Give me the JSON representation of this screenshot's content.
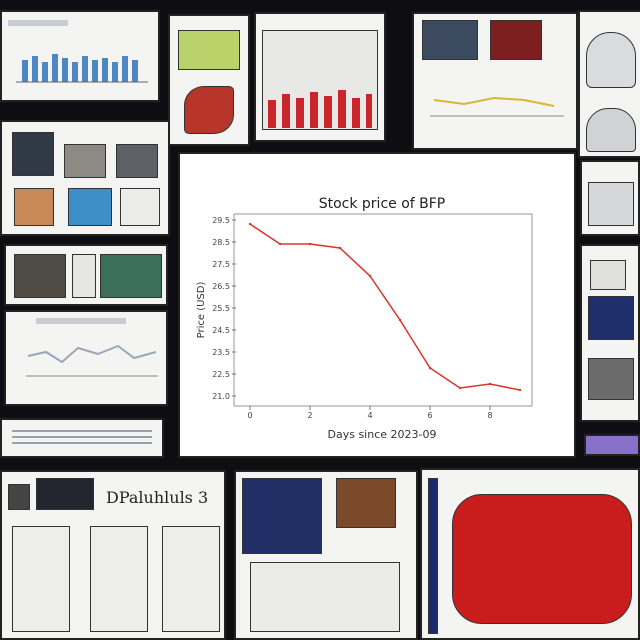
{
  "collage": {
    "middle_left_heading": "",
    "bottom_left_heading": "DPaluhluls 3"
  },
  "chart_data": {
    "type": "line",
    "title": "Stock price of BFP",
    "xlabel": "Days since 2023-09",
    "ylabel": "Price (USD)",
    "x": [
      0,
      1,
      2,
      3,
      4,
      5,
      6,
      7,
      8,
      9
    ],
    "y": [
      29.4,
      28.4,
      28.4,
      28.2,
      26.8,
      24.6,
      22.2,
      21.2,
      21.4,
      21.1
    ],
    "yticks": [
      "29.5",
      "28.5",
      "27.5",
      "26.5",
      "25.5",
      "24.5",
      "23.5",
      "22.5",
      "21.0"
    ],
    "xticks": [
      "0",
      "2",
      "4",
      "6",
      "8"
    ],
    "ylim": [
      20.8,
      29.6
    ],
    "line_color": "#d9362b",
    "grid": false
  }
}
